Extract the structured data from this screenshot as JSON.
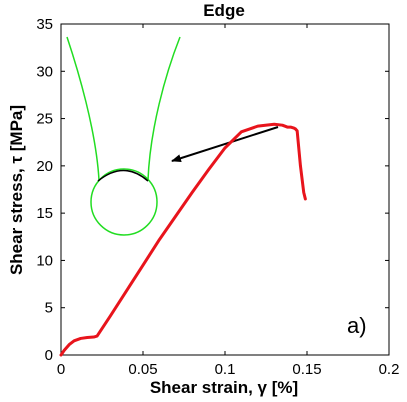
{
  "chart_data": {
    "type": "line",
    "title": "Edge",
    "xlabel": "Shear strain, γ [%]",
    "ylabel": "Shear stress, τ [MPa]",
    "xlim": [
      0,
      0.2
    ],
    "ylim": [
      0,
      35
    ],
    "x_ticks": [
      "0",
      "0.05",
      "0.1",
      "0.15",
      "0.2"
    ],
    "y_ticks": [
      "0",
      "5",
      "10",
      "15",
      "20",
      "25",
      "30",
      "35"
    ],
    "grid": false,
    "legend": "none",
    "panel_label": "a)",
    "series": [
      {
        "color": "#e8141c",
        "x": [
          0,
          0.002,
          0.005,
          0.008,
          0.012,
          0.016,
          0.02,
          0.022,
          0.03,
          0.04,
          0.05,
          0.06,
          0.07,
          0.08,
          0.09,
          0.1,
          0.11,
          0.12,
          0.13,
          0.135,
          0.138,
          0.14,
          0.142,
          0.143,
          0.144,
          0.146,
          0.148,
          0.149
        ],
        "y": [
          0,
          0.5,
          1.1,
          1.5,
          1.75,
          1.85,
          1.9,
          2.0,
          4.1,
          6.8,
          9.5,
          12.2,
          14.7,
          17.2,
          19.6,
          21.9,
          23.6,
          24.2,
          24.4,
          24.3,
          24.1,
          24.1,
          24.0,
          23.9,
          23.7,
          20.0,
          17.2,
          16.5
        ]
      }
    ],
    "inset": {
      "description_colors": {
        "outline": "#22dd22",
        "arc": "#000000",
        "arrow": "#000000"
      }
    }
  }
}
